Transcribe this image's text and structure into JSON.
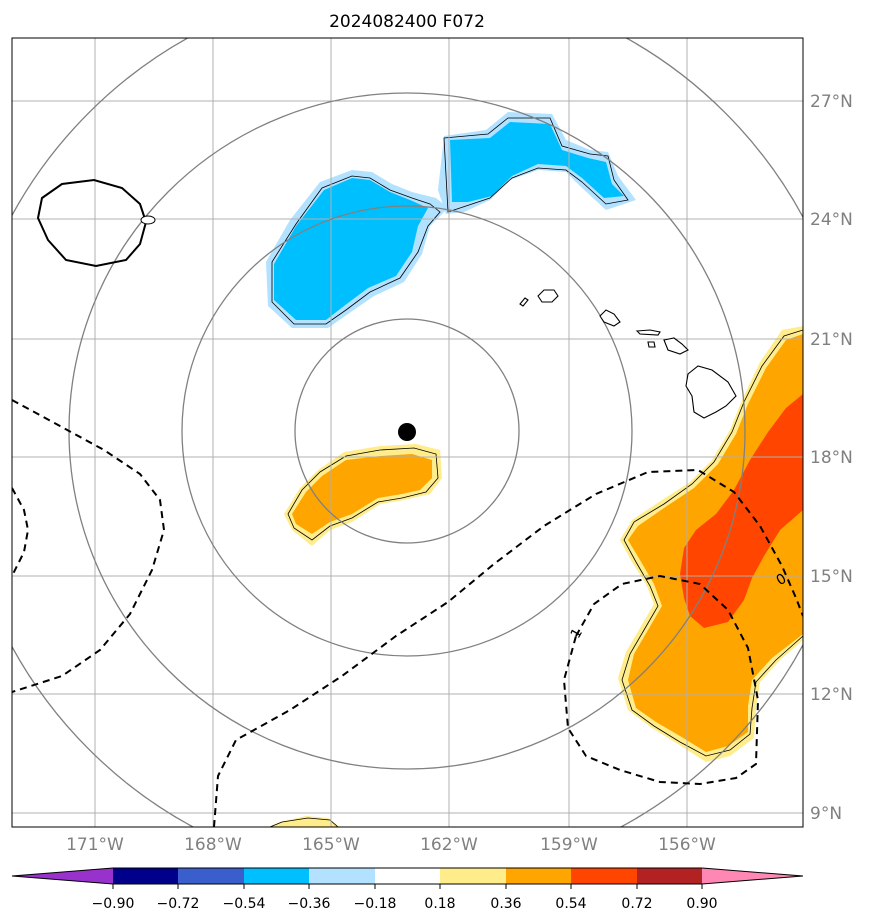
{
  "title": "2024082400 F072",
  "axes": {
    "x_ticks": [
      "171°W",
      "168°W",
      "165°W",
      "162°W",
      "159°W",
      "156°W"
    ],
    "y_ticks": [
      "27°N",
      "24°N",
      "21°N",
      "18°N",
      "15°N",
      "12°N",
      "9°N"
    ]
  },
  "colorbar": {
    "tick_labels": [
      "−0.90",
      "−0.72",
      "−0.54",
      "−0.36",
      "−0.18",
      "0.18",
      "0.36",
      "0.54",
      "0.72",
      "0.90"
    ],
    "colors": [
      "#9932cc",
      "#00008b",
      "#3a5fcd",
      "#00bfff",
      "#b2e2ff",
      "#ffffff",
      "#ffec8b",
      "#ffa500",
      "#ff4500",
      "#b22222",
      "#ff87b4"
    ]
  },
  "contour_labels": [
    "0",
    "1"
  ],
  "colors": {
    "negative_fill": "#00bfff",
    "negative_edge": "#b2e2ff",
    "positive_fill": "#ffa500",
    "positive_edge": "#ffec8b",
    "strong_positive": "#ff4500",
    "grid": "#b0b0b0",
    "range_rings": "#808080"
  }
}
